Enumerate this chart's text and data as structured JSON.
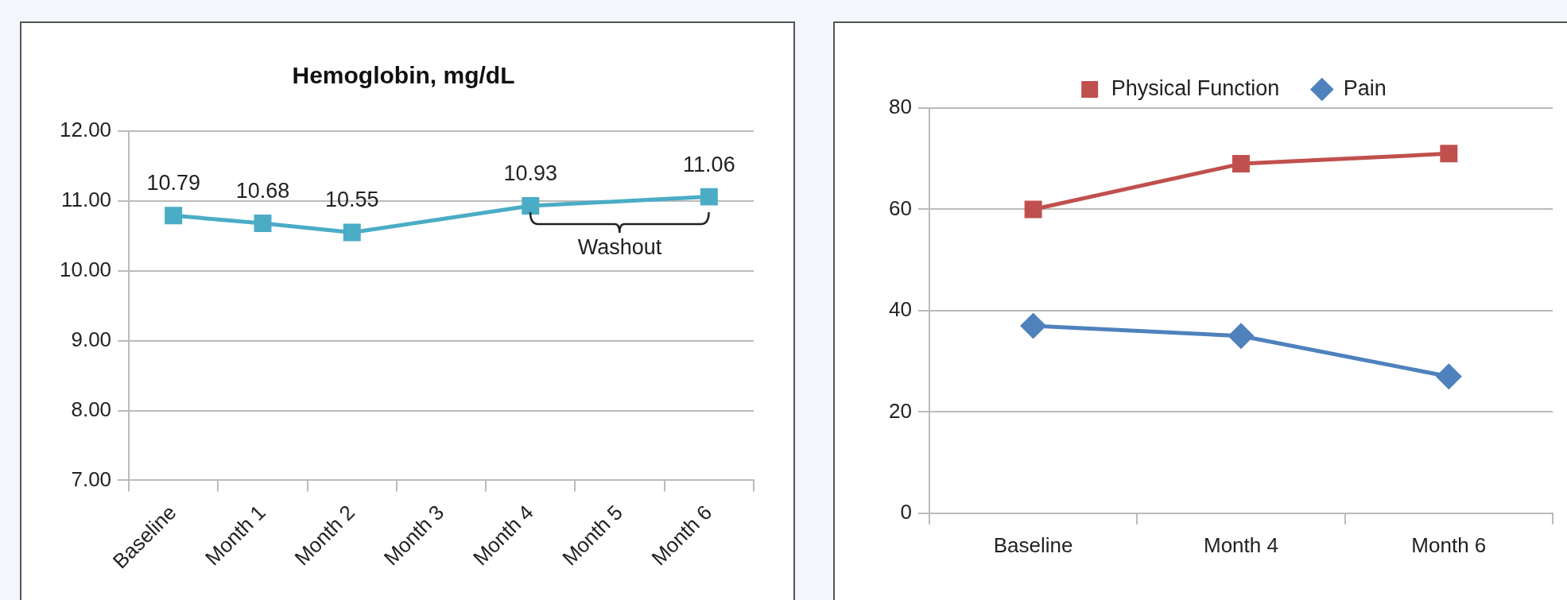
{
  "chart_data": [
    {
      "type": "line",
      "title": "Hemoglobin, mg/dL",
      "categories": [
        "Baseline",
        "Month 1",
        "Month 2",
        "Month 3",
        "Month 4",
        "Month 5",
        "Month 6"
      ],
      "series": [
        {
          "color": "#4bacc6",
          "values": [
            10.79,
            10.68,
            10.55,
            null,
            10.93,
            null,
            11.06
          ]
        }
      ],
      "ylim": [
        7,
        12
      ],
      "yticks": [
        {
          "value": 7,
          "label": "7.00"
        },
        {
          "value": 8,
          "label": "8.00"
        },
        {
          "value": 9,
          "label": "9.00"
        },
        {
          "value": 10,
          "label": "10.00"
        },
        {
          "value": 11,
          "label": "11.00"
        },
        {
          "value": 12,
          "label": "12.00"
        }
      ],
      "data_labels": true,
      "grid": "y",
      "marker": "square",
      "legend": false,
      "annotations": [
        "Washout"
      ]
    },
    {
      "type": "line",
      "categories": [
        "Baseline",
        "Month 4",
        "Month 6"
      ],
      "series": [
        {
          "name": "Physical Function",
          "color": "#c0504d",
          "marker": "square",
          "values": [
            60,
            69,
            71
          ]
        },
        {
          "name": "Pain",
          "color": "#4f81bd",
          "marker": "diamond",
          "values": [
            37,
            35,
            27
          ]
        }
      ],
      "ylim": [
        0,
        80
      ],
      "yticks": [
        0,
        20,
        40,
        60,
        80
      ],
      "grid": "y",
      "legend": "top"
    }
  ]
}
